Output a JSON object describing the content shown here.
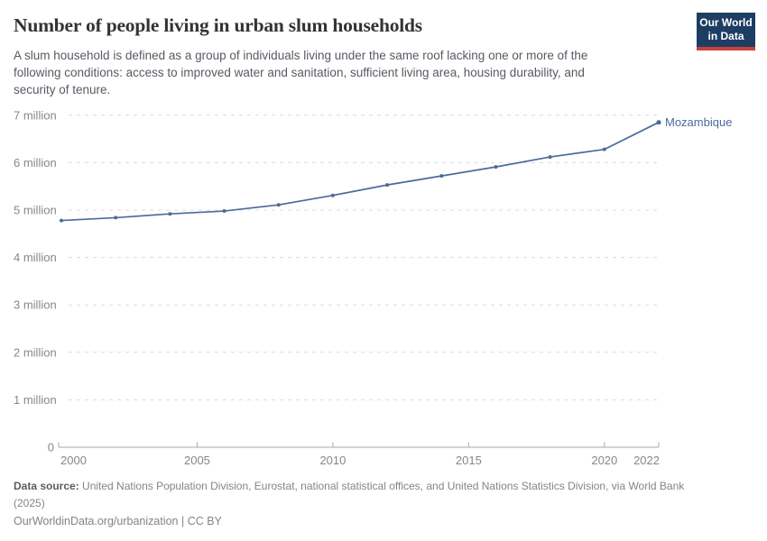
{
  "header": {
    "title": "Number of people living in urban slum households",
    "subtitle": "A slum household is defined as a group of individuals living under the same roof lacking one or more of the\nfollowing conditions: access to improved water and sanitation, sufficient living area, housing durability, and\nsecurity of tenure.",
    "logo": {
      "line1": "Our World",
      "line2": "in Data",
      "bg_color": "#1d3d63",
      "accent_color": "#c8413a"
    }
  },
  "chart_data": {
    "type": "line",
    "title": "Number of people living in urban slum households",
    "xlabel": "",
    "ylabel": "",
    "unit": "people",
    "x": [
      2000,
      2002,
      2004,
      2006,
      2008,
      2010,
      2012,
      2014,
      2016,
      2018,
      2020,
      2022
    ],
    "series": [
      {
        "name": "Mozambique",
        "color": "#4c6a9c",
        "values_millions": [
          4.78,
          4.84,
          4.92,
          4.98,
          5.11,
          5.31,
          5.53,
          5.72,
          5.91,
          6.12,
          6.28,
          6.85
        ]
      }
    ],
    "xlim": [
      2000,
      2022
    ],
    "ylim_millions": [
      0,
      7
    ],
    "y_ticks": [
      {
        "v": 0,
        "label": "0"
      },
      {
        "v": 1,
        "label": "1 million"
      },
      {
        "v": 2,
        "label": "2 million"
      },
      {
        "v": 3,
        "label": "3 million"
      },
      {
        "v": 4,
        "label": "4 million"
      },
      {
        "v": 5,
        "label": "5 million"
      },
      {
        "v": 6,
        "label": "6 million"
      },
      {
        "v": 7,
        "label": "7 million"
      }
    ],
    "x_ticks": [
      2000,
      2005,
      2010,
      2015,
      2020,
      2022
    ],
    "grid": "horizontal-dashed",
    "legend": "inline-end-label",
    "colors": {
      "grid": "#dcdcdc",
      "axis": "#a8a8a8",
      "tick_text": "#878787"
    }
  },
  "footer": {
    "datasource_label": "Data source:",
    "datasource_text": " United Nations Population Division, Eurostat, national statistical offices, and United Nations Statistics Division, via World Bank\n(2025)",
    "link_text": "OurWorldinData.org/urbanization | CC BY"
  }
}
